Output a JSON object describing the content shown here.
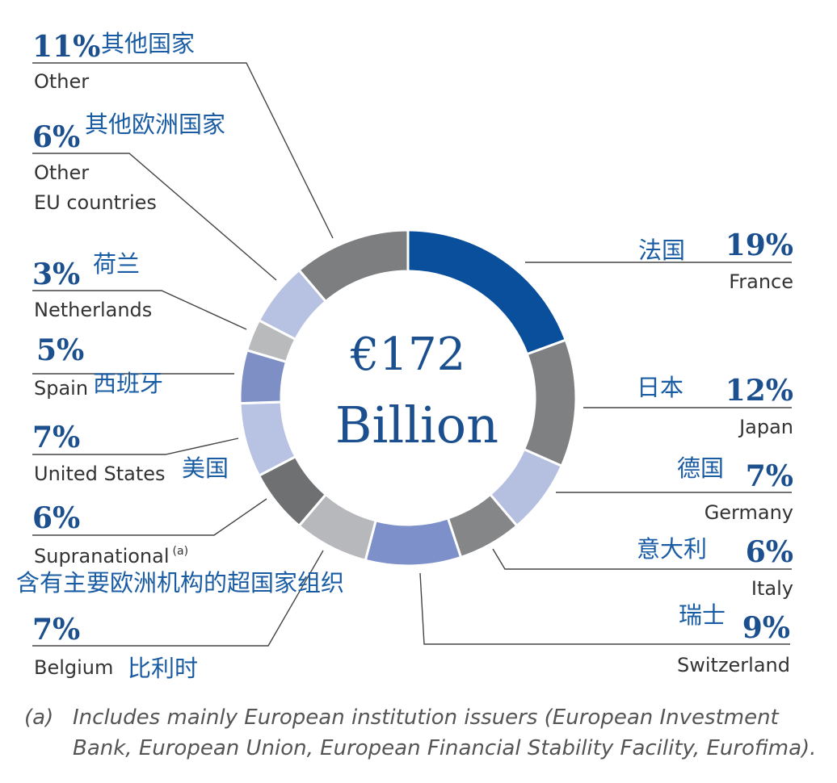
{
  "chart_data": {
    "type": "pie",
    "categories": [
      "France",
      "Japan",
      "Germany",
      "Italy",
      "Switzerland",
      "Belgium",
      "Supranational",
      "United States",
      "Spain",
      "Netherlands",
      "Other EU countries",
      "Other"
    ],
    "chinese_labels": [
      "法国",
      "日本",
      "德国",
      "意大利",
      "瑞士",
      "比利时",
      "含有主要欧洲机构的超国家组织",
      "美国",
      "西班牙",
      "荷兰",
      "其他欧洲国家",
      "其他国家"
    ],
    "values": [
      19,
      12,
      7,
      6,
      9,
      7,
      6,
      7,
      5,
      3,
      6,
      11
    ],
    "value_labels": [
      "19%",
      "12%",
      "7%",
      "6%",
      "9%",
      "7%",
      "6%",
      "7%",
      "5%",
      "3%",
      "6%",
      "11%"
    ],
    "colors": [
      "#0a4f9c",
      "#7f8082",
      "#b5bfe0",
      "#858688",
      "#7d90c9",
      "#b6b8bb",
      "#6f7072",
      "#b8c2e2",
      "#7e8fc6",
      "#b9babc",
      "#b7c1e1",
      "#7d7e80"
    ],
    "center_value": "€172",
    "center_unit": "Billion",
    "supranational_marker": "(a)",
    "footnote": {
      "marker": "(a)",
      "text": "Includes mainly European institution issuers (European Investment Bank, European Union, European Financial Stability Facility, Eurofima)."
    }
  }
}
